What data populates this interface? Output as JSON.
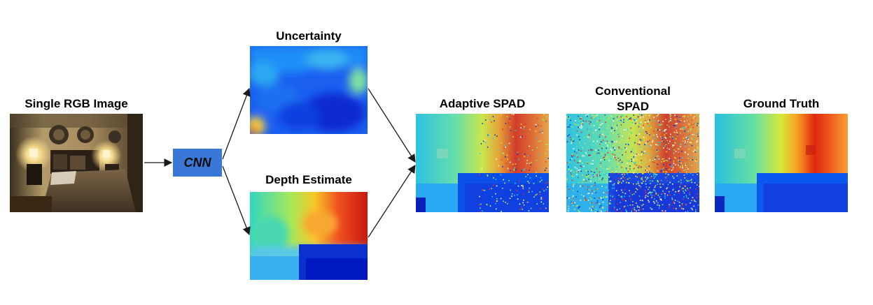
{
  "labels": {
    "rgb": "Single RGB Image",
    "uncertainty": "Uncertainty",
    "depth": "Depth Estimate",
    "adaptive": "Adaptive SPAD",
    "conventional_line1": "Conventional",
    "conventional_line2": "SPAD",
    "ground_truth": "Ground Truth"
  },
  "cnn": {
    "label": "CNN"
  },
  "colors": {
    "cnn_box": "#3a78d8",
    "arrow": "#1a1a1a"
  }
}
